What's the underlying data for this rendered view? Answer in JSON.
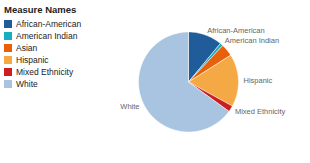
{
  "chart_data": {
    "type": "pie",
    "title": "Measure Names",
    "categories": [
      "African-American",
      "American Indian",
      "Asian",
      "Hispanic",
      "Mixed Ethnicity",
      "White"
    ],
    "values": [
      11,
      1,
      4,
      17,
      2,
      65
    ],
    "colors": [
      "#1F5C99",
      "#17AEBF",
      "#E8600A",
      "#F5A944",
      "#CC2020",
      "#A8C4E0"
    ],
    "annotations": [
      "African-American",
      "American Indian",
      "Hispanic",
      "Mixed Ethnicity",
      "White"
    ],
    "legend": "upper left"
  }
}
